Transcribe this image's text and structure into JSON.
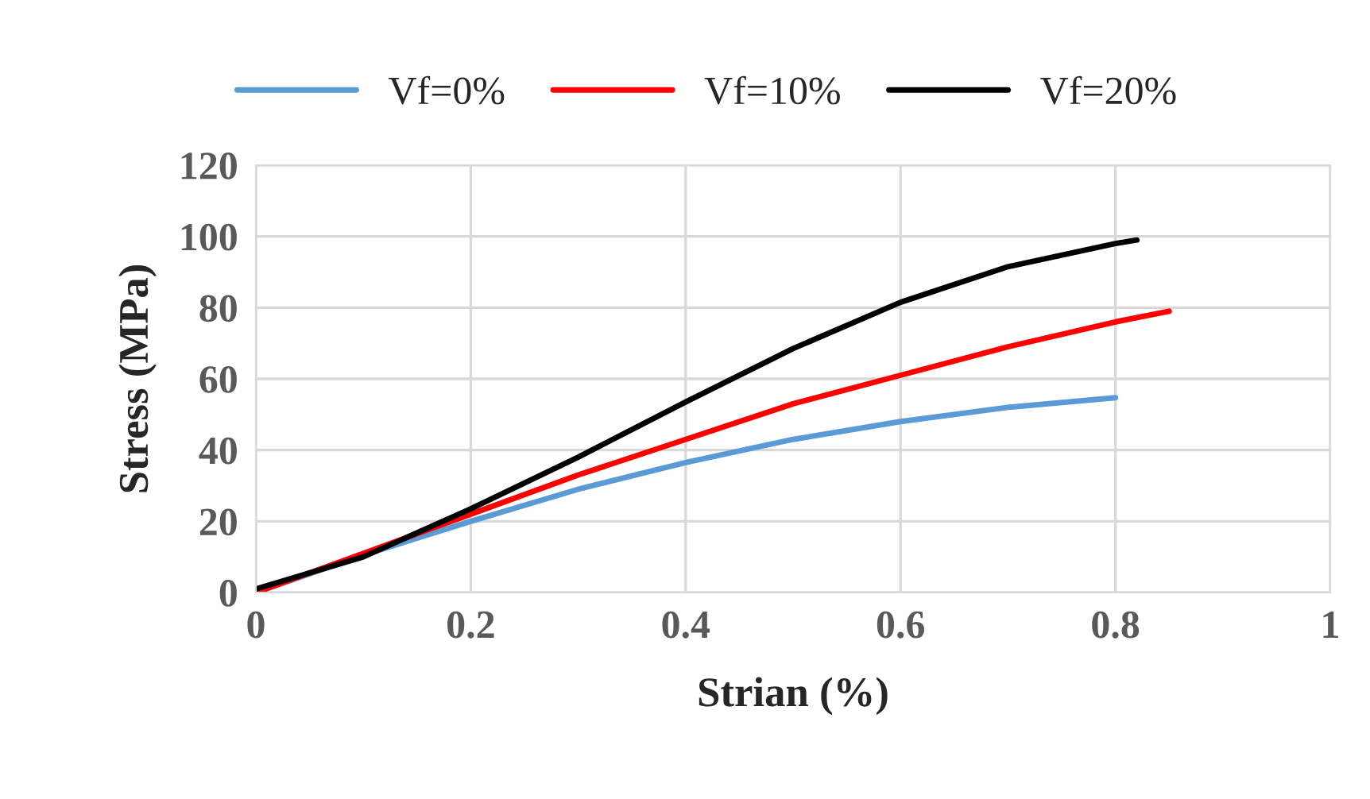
{
  "chart_data": {
    "type": "line",
    "xlabel": "Strian (%)",
    "ylabel": "Stress (MPa)",
    "xlim": [
      0,
      1
    ],
    "ylim": [
      0,
      120
    ],
    "xticks": [
      0,
      0.2,
      0.4,
      0.6,
      0.8,
      1
    ],
    "yticks": [
      0,
      20,
      40,
      60,
      80,
      100,
      120
    ],
    "grid": true,
    "legend": "top",
    "marker": "none",
    "line_style": "solid",
    "series": [
      {
        "name": "Vf=0%",
        "color": "#5b9bd5",
        "x": [
          0,
          0.1,
          0.2,
          0.3,
          0.4,
          0.5,
          0.6,
          0.7,
          0.8
        ],
        "values": [
          0,
          10.5,
          20,
          29,
          36.5,
          43,
          48,
          52,
          54.7
        ]
      },
      {
        "name": "Vf=10%",
        "color": "#ff0000",
        "x": [
          0,
          0.1,
          0.2,
          0.3,
          0.4,
          0.5,
          0.6,
          0.7,
          0.8,
          0.85
        ],
        "values": [
          0,
          11,
          22,
          33,
          43,
          53,
          61,
          69,
          76,
          79
        ]
      },
      {
        "name": "Vf=20%",
        "color": "#000000",
        "x": [
          0,
          0.1,
          0.2,
          0.3,
          0.4,
          0.5,
          0.6,
          0.7,
          0.8,
          0.82
        ],
        "values": [
          1,
          10,
          23.5,
          38,
          53.5,
          68.5,
          81.5,
          91.5,
          98,
          99
        ]
      }
    ]
  }
}
